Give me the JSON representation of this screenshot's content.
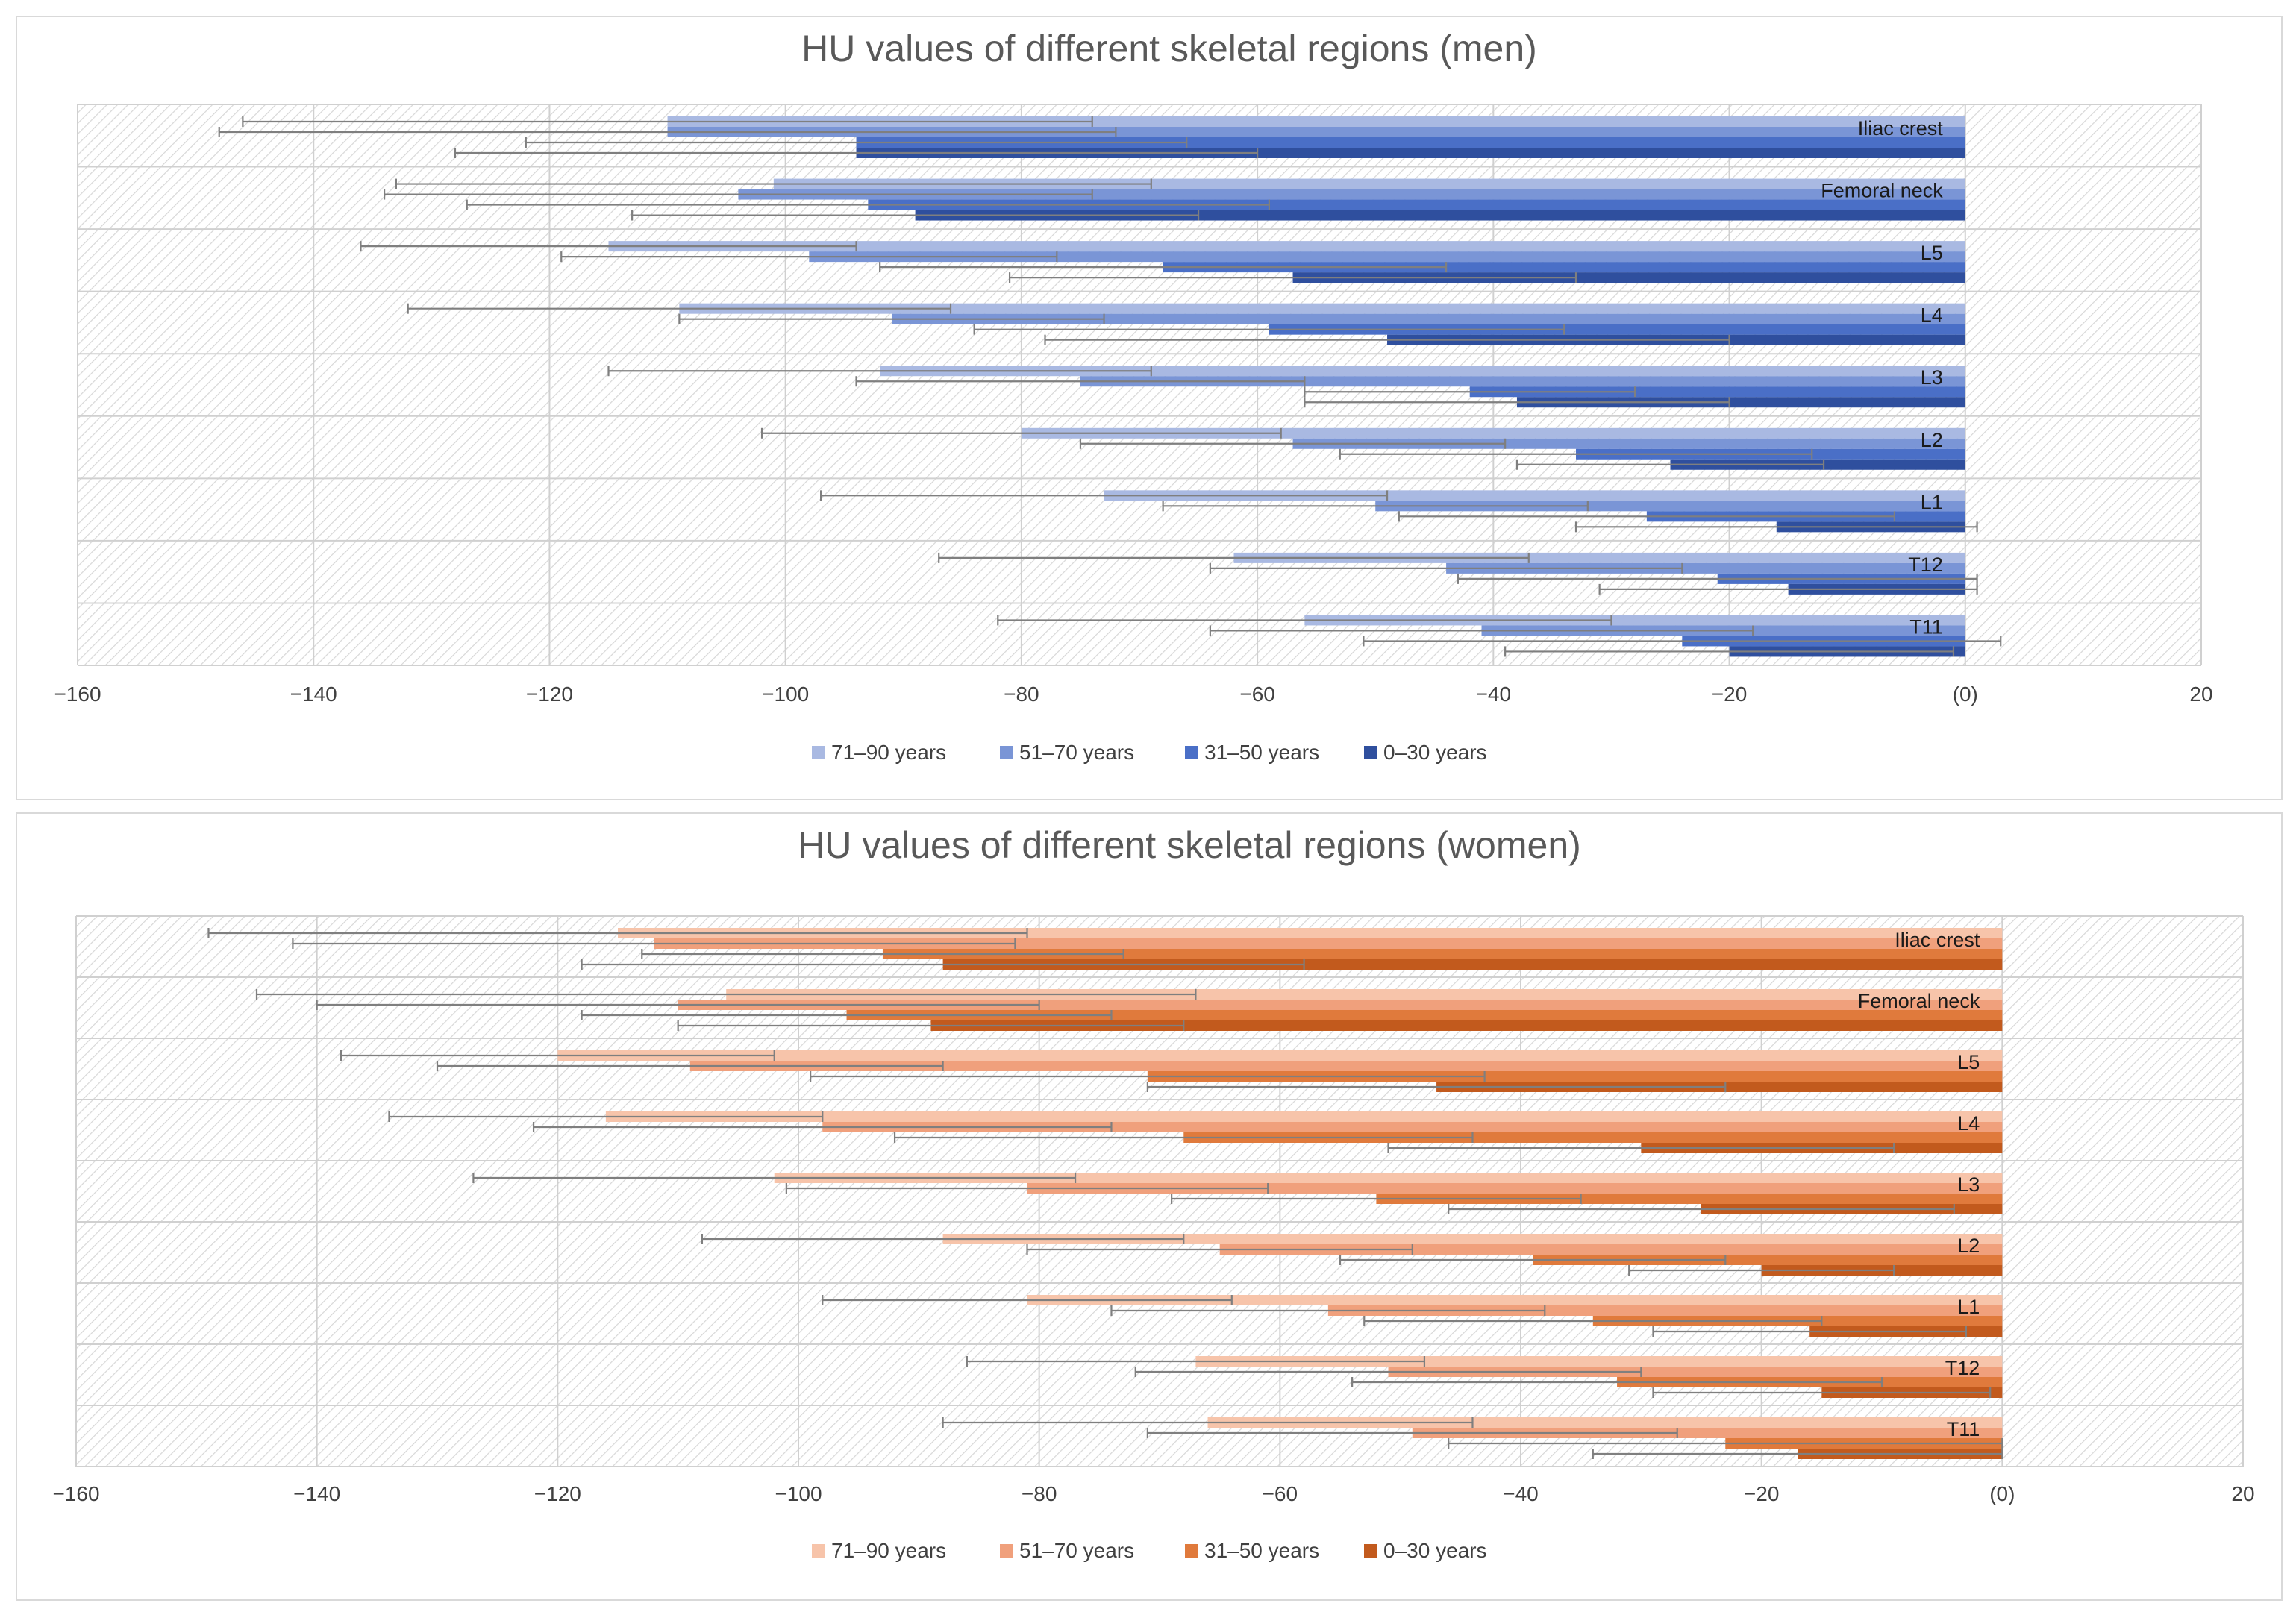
{
  "chart_data": [
    {
      "type": "bar",
      "orientation": "horizontal",
      "title": "HU values of different skeletal regions (men)",
      "xlabel": "",
      "ylabel": "",
      "xlim": [
        -160,
        20
      ],
      "x_ticks": [
        -160,
        -140,
        -120,
        -100,
        -80,
        -60,
        -40,
        -20,
        0,
        20
      ],
      "x_tick_labels": [
        "−160",
        "−140",
        "−120",
        "−100",
        "−80",
        "−60",
        "−40",
        "−20",
        "(0)",
        "20"
      ],
      "grid": true,
      "legend_position": "bottom",
      "categories": [
        "Iliac crest",
        "Femoral neck",
        "L5",
        "L4",
        "L3",
        "L2",
        "L1",
        "T12",
        "T11"
      ],
      "series": [
        {
          "name": "71–90 years",
          "color": "#a9b9e2",
          "values": [
            -110,
            -101,
            -115,
            -109,
            -92,
            -80,
            -73,
            -62,
            -56
          ],
          "errors": [
            36,
            32,
            21,
            23,
            23,
            22,
            24,
            25,
            26
          ]
        },
        {
          "name": "51–70 years",
          "color": "#7a95d6",
          "values": [
            -110,
            -104,
            -98,
            -91,
            -75,
            -57,
            -50,
            -44,
            -41
          ],
          "errors": [
            38,
            30,
            21,
            18,
            19,
            18,
            18,
            20,
            23
          ]
        },
        {
          "name": "31–50 years",
          "color": "#4a6fc7",
          "values": [
            -94,
            -93,
            -68,
            -59,
            -42,
            -33,
            -27,
            -21,
            -24
          ],
          "errors": [
            28,
            34,
            24,
            25,
            14,
            20,
            21,
            22,
            27
          ]
        },
        {
          "name": "0–30 years",
          "color": "#2f4f9e",
          "values": [
            -94,
            -89,
            -57,
            -49,
            -38,
            -25,
            -16,
            -15,
            -20
          ],
          "errors": [
            34,
            24,
            24,
            29,
            18,
            13,
            17,
            16,
            19
          ]
        }
      ]
    },
    {
      "type": "bar",
      "orientation": "horizontal",
      "title": "HU values of different skeletal regions (women)",
      "xlabel": "",
      "ylabel": "",
      "xlim": [
        -160,
        20
      ],
      "x_ticks": [
        -160,
        -140,
        -120,
        -100,
        -80,
        -60,
        -40,
        -20,
        0,
        20
      ],
      "x_tick_labels": [
        "−160",
        "−140",
        "−120",
        "−100",
        "−80",
        "−60",
        "−40",
        "−20",
        "(0)",
        "20"
      ],
      "grid": true,
      "legend_position": "bottom",
      "categories": [
        "Iliac crest",
        "Femoral neck",
        "L5",
        "L4",
        "L3",
        "L2",
        "L1",
        "T12",
        "T11"
      ],
      "series": [
        {
          "name": "71–90 years",
          "color": "#f7c4aa",
          "values": [
            -115,
            -106,
            -120,
            -116,
            -102,
            -88,
            -81,
            -67,
            -66
          ],
          "errors": [
            34,
            39,
            18,
            18,
            25,
            20,
            17,
            19,
            22
          ]
        },
        {
          "name": "51–70 years",
          "color": "#f0a07c",
          "values": [
            -112,
            -110,
            -109,
            -98,
            -81,
            -65,
            -56,
            -51,
            -49
          ],
          "errors": [
            30,
            30,
            21,
            24,
            20,
            16,
            18,
            21,
            22
          ]
        },
        {
          "name": "31–50 years",
          "color": "#e07a3c",
          "values": [
            -93,
            -96,
            -71,
            -68,
            -52,
            -39,
            -34,
            -32,
            -23
          ],
          "errors": [
            20,
            22,
            28,
            24,
            17,
            16,
            19,
            22,
            23
          ]
        },
        {
          "name": "0–30 years",
          "color": "#c25a1d",
          "values": [
            -88,
            -89,
            -47,
            -30,
            -25,
            -20,
            -16,
            -15,
            -17
          ],
          "errors": [
            30,
            21,
            24,
            21,
            21,
            11,
            13,
            14,
            17
          ]
        }
      ]
    }
  ]
}
